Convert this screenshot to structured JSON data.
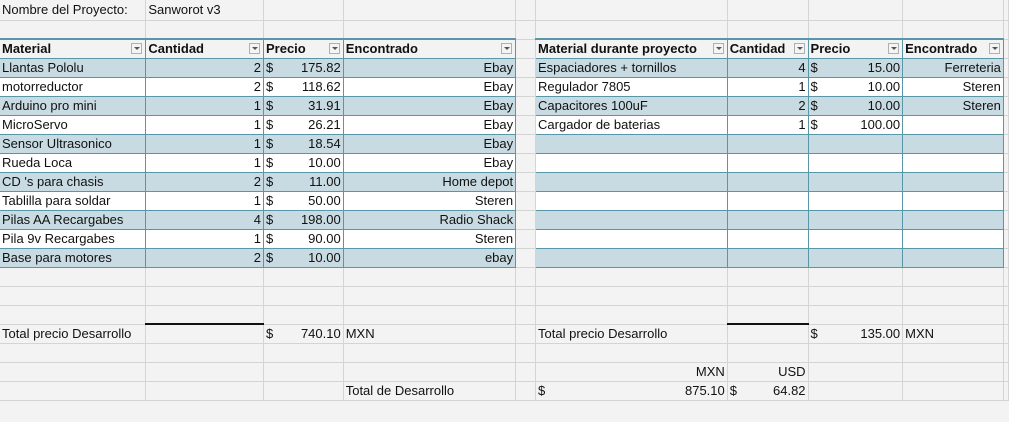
{
  "project": {
    "label": "Nombre del Proyecto:",
    "name": "Sanworot v3"
  },
  "left_table": {
    "headers": [
      "Material",
      "Cantidad",
      "Precio",
      "Encontrado"
    ],
    "rows": [
      {
        "material": "Llantas Pololu",
        "cantidad": "2",
        "precio": "175.82",
        "encontrado": "Ebay"
      },
      {
        "material": "motorreductor",
        "cantidad": "2",
        "precio": "118.62",
        "encontrado": "Ebay"
      },
      {
        "material": "Arduino pro mini",
        "cantidad": "1",
        "precio": "31.91",
        "encontrado": "Ebay"
      },
      {
        "material": "MicroServo",
        "cantidad": "1",
        "precio": "26.21",
        "encontrado": "Ebay"
      },
      {
        "material": "Sensor Ultrasonico",
        "cantidad": "1",
        "precio": "18.54",
        "encontrado": "Ebay"
      },
      {
        "material": "Rueda Loca",
        "cantidad": "1",
        "precio": "10.00",
        "encontrado": "Ebay"
      },
      {
        "material": "CD 's para chasis",
        "cantidad": "2",
        "precio": "11.00",
        "encontrado": "Home depot"
      },
      {
        "material": "Tablilla para soldar",
        "cantidad": "1",
        "precio": "50.00",
        "encontrado": "Steren"
      },
      {
        "material": "Pilas  AA Recargabes",
        "cantidad": "4",
        "precio": "198.00",
        "encontrado": "Radio Shack"
      },
      {
        "material": "Pila 9v Recargabes",
        "cantidad": "1",
        "precio": "90.00",
        "encontrado": "Steren"
      },
      {
        "material": "Base para motores",
        "cantidad": "2",
        "precio": "10.00",
        "encontrado": "ebay"
      }
    ],
    "total_label": "Total precio Desarrollo",
    "total_value": "740.10",
    "total_currency": "MXN"
  },
  "right_table": {
    "headers": [
      "Material durante proyecto",
      "Cantidad",
      "Precio",
      "Encontrado"
    ],
    "rows": [
      {
        "material": "Espaciadores + tornillos",
        "cantidad": "4",
        "precio": "15.00",
        "encontrado": "Ferreteria"
      },
      {
        "material": "Regulador 7805",
        "cantidad": "1",
        "precio": "10.00",
        "encontrado": "Steren"
      },
      {
        "material": "Capacitores 100uF",
        "cantidad": "2",
        "precio": "10.00",
        "encontrado": "Steren"
      },
      {
        "material": "Cargador de baterias",
        "cantidad": "1",
        "precio": "100.00",
        "encontrado": ""
      }
    ],
    "total_label": "Total precio Desarrollo",
    "total_value": "135.00",
    "total_currency": "MXN"
  },
  "grand_total": {
    "label": "Total de Desarrollo",
    "mxn_header": "MXN",
    "usd_header": "USD",
    "mxn_value": "875.10",
    "usd_value": "64.82"
  },
  "currency_symbol": "$",
  "colors": {
    "band": "#c9dbe2",
    "table_border": "#5a97a6",
    "grid": "#d4d4d4"
  }
}
